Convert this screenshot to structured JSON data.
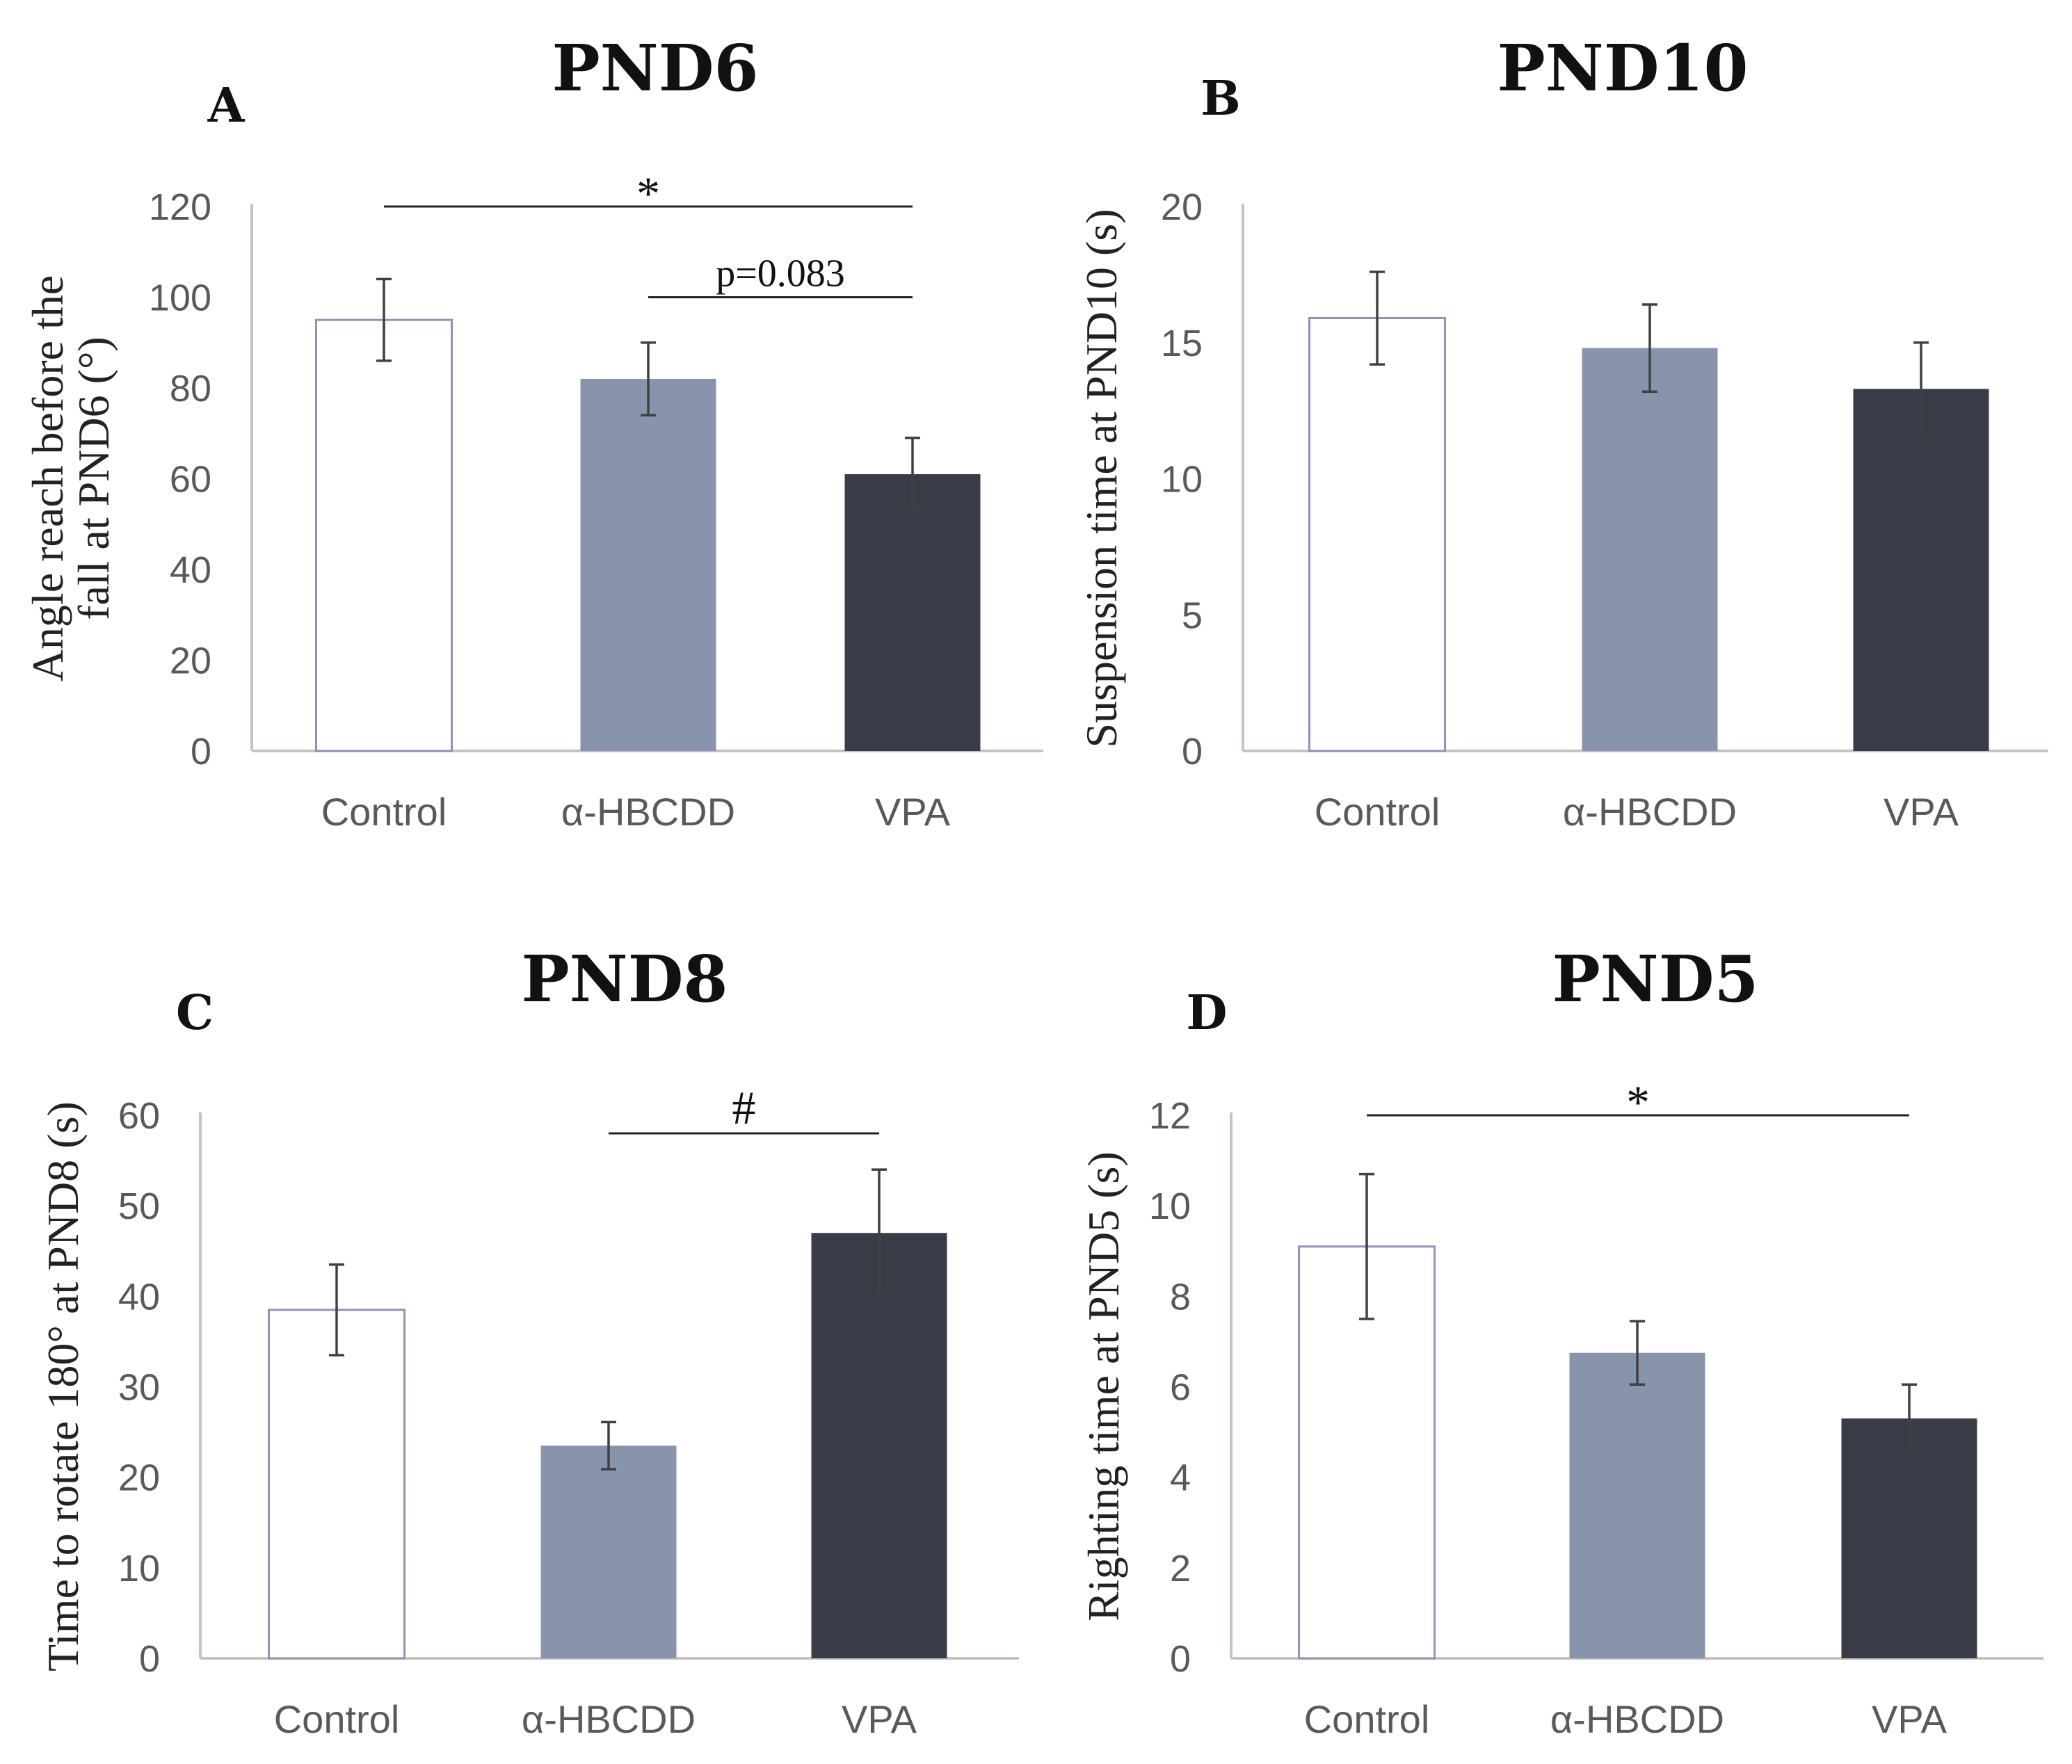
{
  "colors": {
    "control_fill": "#ffffff",
    "control_stroke": "#8a96b8",
    "hbcdd_fill": "#8894ac",
    "vpa_fill": "#383c47",
    "axis": "#c9c0c0",
    "tick_text": "#595959",
    "error_bar": "#404040"
  },
  "chart_data": [
    {
      "type": "bar",
      "letter": "A",
      "title": "PND6",
      "ylabel_lines": [
        "Angle reach before the",
        "fall at PND6 (°)"
      ],
      "categories": [
        "Control",
        "α-HBCDD",
        "VPA"
      ],
      "values": [
        95,
        82,
        61
      ],
      "errors": [
        9,
        8,
        8
      ],
      "ylim": [
        0,
        120
      ],
      "yticks": [
        0,
        20,
        40,
        60,
        80,
        100,
        120
      ],
      "significance": [
        {
          "from": 0,
          "to": 2,
          "label": "*",
          "y": 120
        },
        {
          "from": 1,
          "to": 2,
          "label": "p=0.083",
          "y": 100
        }
      ]
    },
    {
      "type": "bar",
      "letter": "B",
      "title": "PND10",
      "ylabel_lines": [
        "Suspension time at PND10 (s)"
      ],
      "categories": [
        "Control",
        "α-HBCDD",
        "VPA"
      ],
      "values": [
        15.9,
        14.8,
        13.3
      ],
      "errors": [
        1.7,
        1.6,
        1.7
      ],
      "ylim": [
        0,
        20
      ],
      "yticks": [
        0,
        5,
        10,
        15,
        20
      ],
      "significance": []
    },
    {
      "type": "bar",
      "letter": "C",
      "title": "PND8",
      "ylabel_lines": [
        "Time to rotate 180° at PND8 (s)"
      ],
      "categories": [
        "Control",
        "α-HBCDD",
        "VPA"
      ],
      "values": [
        38.5,
        23.5,
        47
      ],
      "errors": [
        5,
        2.6,
        7
      ],
      "ylim": [
        0,
        60
      ],
      "yticks": [
        0,
        10,
        20,
        30,
        40,
        50,
        60
      ],
      "significance": [
        {
          "from": 1,
          "to": 2,
          "label": "#",
          "y": 58
        }
      ]
    },
    {
      "type": "bar",
      "letter": "D",
      "title": "PND5",
      "ylabel_lines": [
        "Righting time at PND5 (s)"
      ],
      "categories": [
        "Control",
        "α-HBCDD",
        "VPA"
      ],
      "values": [
        9.1,
        6.75,
        5.3
      ],
      "errors": [
        1.6,
        0.7,
        0.75
      ],
      "ylim": [
        0,
        12
      ],
      "yticks": [
        0,
        2,
        4,
        6,
        8,
        10,
        12
      ],
      "significance": [
        {
          "from": 0,
          "to": 2,
          "label": "*",
          "y": 12
        }
      ]
    }
  ]
}
